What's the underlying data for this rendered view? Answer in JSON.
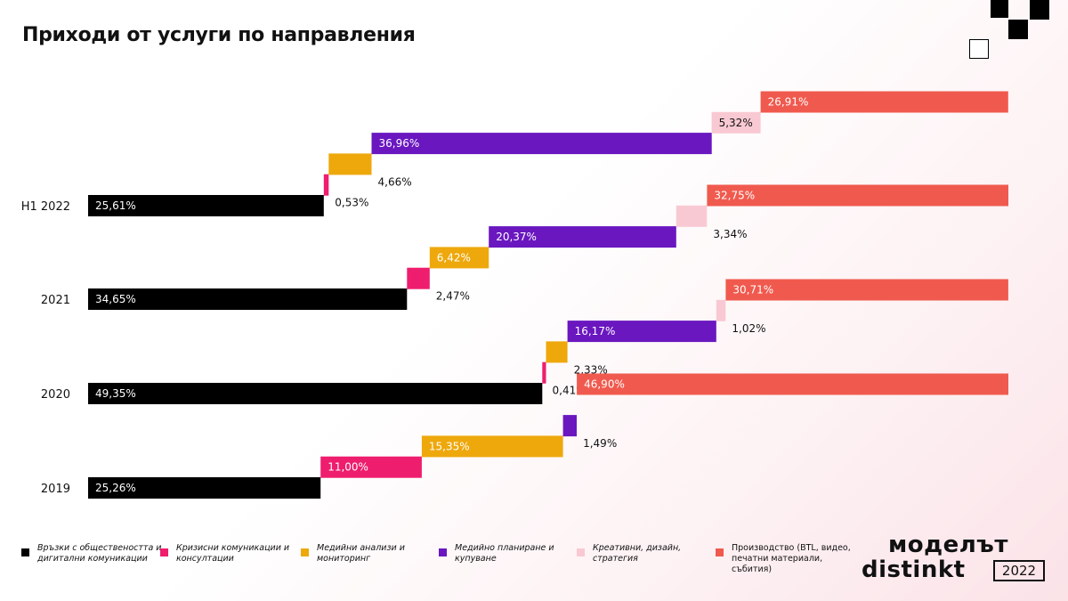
{
  "title": "Приходи от услуги по направления",
  "colors": {
    "pr": "#000000",
    "crisis": "#ee1d6d",
    "media_analysis": "#eea80c",
    "media_planning": "#6a17c0",
    "creative": "#f9c9d3",
    "production": "#f05a4e"
  },
  "legend": [
    {
      "key": "pr",
      "label": "Връзки с обществеността и дигитални комуникации"
    },
    {
      "key": "crisis",
      "label": "Кризисни комуникации и консултации"
    },
    {
      "key": "media_analysis",
      "label": "Медийни анализи и мониторинг"
    },
    {
      "key": "media_planning",
      "label": "Медийно планиране и купуване"
    },
    {
      "key": "creative",
      "label": "Креативни, дизайн, стратегия"
    },
    {
      "key": "production",
      "label": "Производство (BTL, видео, печатни материали, събития)"
    }
  ],
  "brand": {
    "line1": "моделът",
    "line2": "distinkt",
    "year": "2022"
  },
  "chart_data": {
    "type": "bar",
    "stacked": "waterfall",
    "title": "Приходи от услуги по направления",
    "categories": [
      "H1 2022",
      "2021",
      "2020",
      "2019"
    ],
    "series": [
      {
        "key": "pr",
        "name": "Връзки с обществеността и дигитални комуникации",
        "values": [
          25.61,
          34.65,
          49.35,
          25.26
        ],
        "labels": [
          "25,61%",
          "34,65%",
          "49,35%",
          "25,26%"
        ]
      },
      {
        "key": "crisis",
        "name": "Кризисни комуникации и консултации",
        "values": [
          0.53,
          2.47,
          0.41,
          11.0
        ],
        "labels": [
          "0,53%",
          "2,47%",
          "0,41%",
          "11,00%"
        ]
      },
      {
        "key": "media_analysis",
        "name": "Медийни анализи и мониторинг",
        "values": [
          4.66,
          6.42,
          2.33,
          15.35
        ],
        "labels": [
          "4,66%",
          "6,42%",
          "2,33%",
          "15,35%"
        ]
      },
      {
        "key": "media_planning",
        "name": "Медийно планиране и купуване",
        "values": [
          36.96,
          20.37,
          16.17,
          1.49
        ],
        "labels": [
          "36,96%",
          "20,37%",
          "16,17%",
          "1,49%"
        ]
      },
      {
        "key": "creative",
        "name": "Креативни, дизайн, стратегия",
        "values": [
          5.32,
          3.34,
          1.02,
          0
        ],
        "labels": [
          "5,32%",
          "3,34%",
          "1,02%",
          ""
        ]
      },
      {
        "key": "production",
        "name": "Производство (BTL, видео, печатни материали, събития)",
        "values": [
          26.91,
          32.75,
          30.71,
          46.9
        ],
        "labels": [
          "26,91%",
          "32,75%",
          "30,71%",
          "46,90%"
        ]
      }
    ],
    "xlim": [
      0,
      100
    ],
    "legend_position": "bottom"
  }
}
